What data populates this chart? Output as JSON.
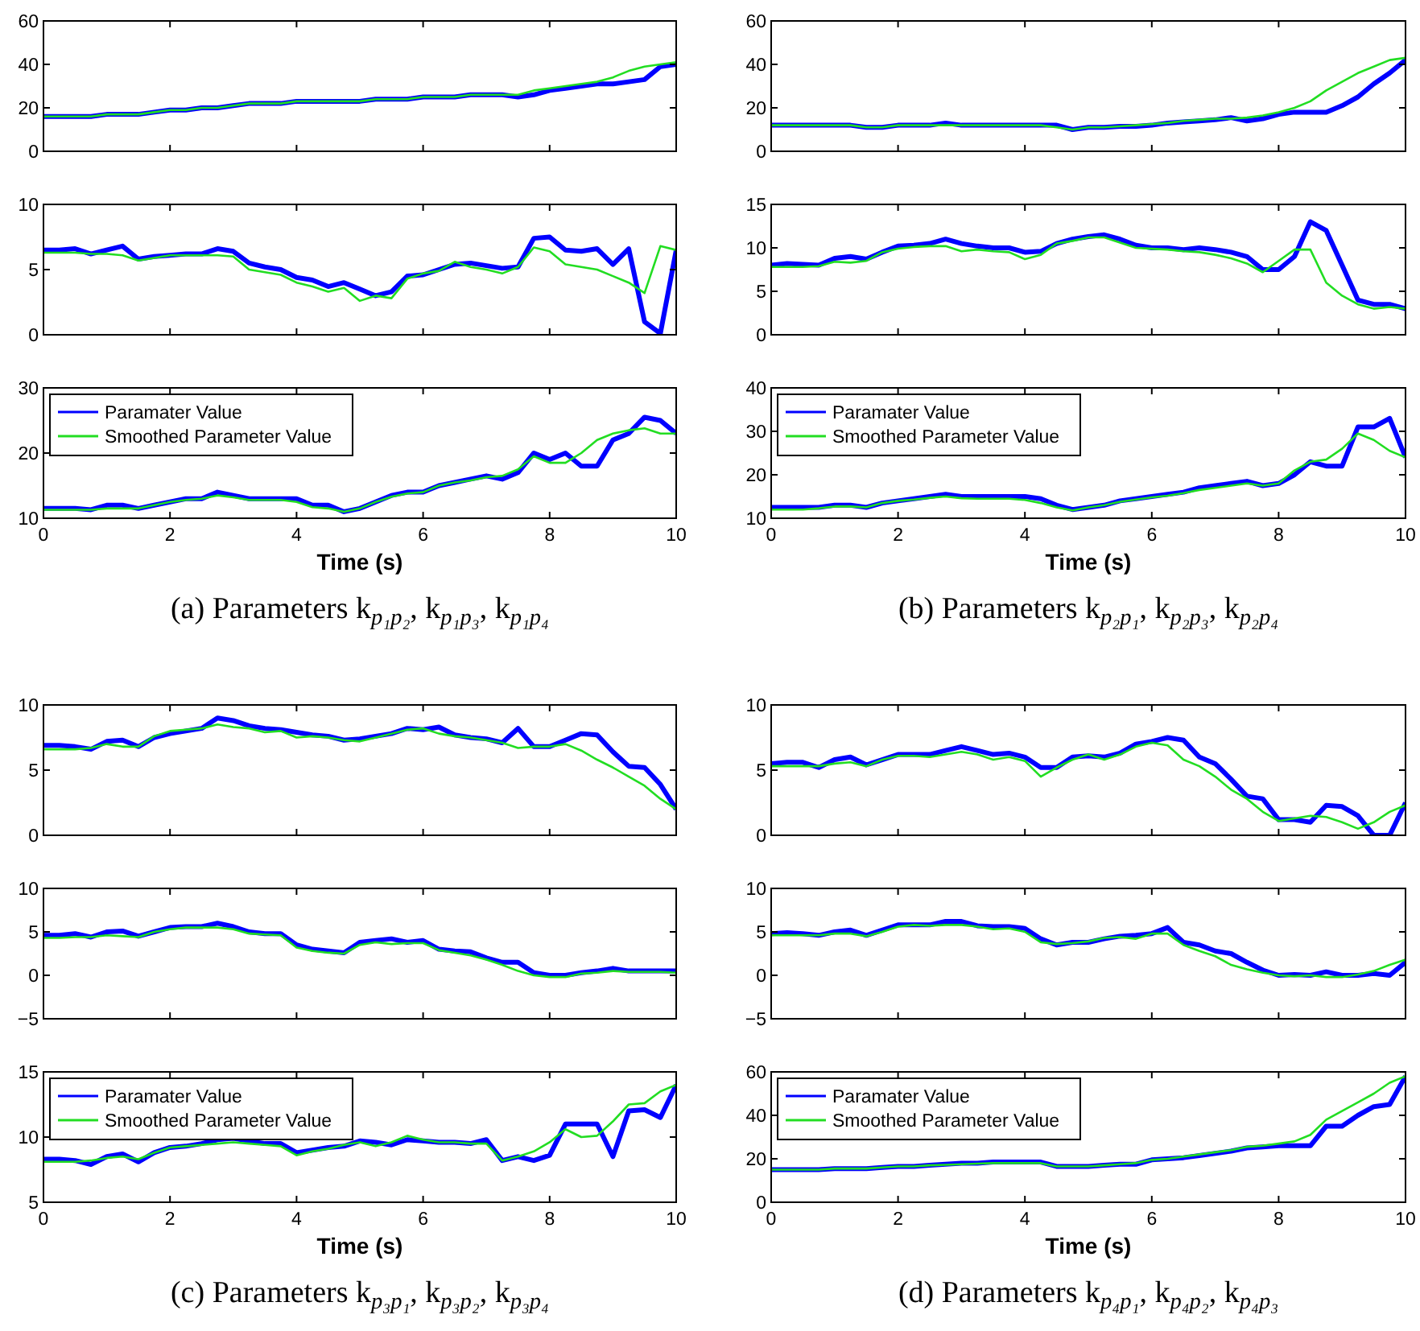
{
  "chart_data": [
    {
      "type": "line",
      "x": [
        0,
        0.25,
        0.5,
        0.75,
        1,
        1.25,
        1.5,
        1.75,
        2,
        2.25,
        2.5,
        2.75,
        3,
        3.25,
        3.5,
        3.75,
        4,
        4.25,
        4.5,
        4.75,
        5,
        5.25,
        5.5,
        5.75,
        6,
        6.25,
        6.5,
        6.75,
        7,
        7.25,
        7.5,
        7.75,
        8,
        8.25,
        8.5,
        8.75,
        9,
        9.25,
        9.5,
        9.75,
        10
      ],
      "xlim": [
        0,
        10
      ],
      "xticks": [
        0,
        2,
        4,
        6,
        8,
        10
      ],
      "ylim": [
        0,
        60
      ],
      "yticks": [
        0,
        20,
        40,
        60
      ],
      "tick_labels": "y",
      "series": [
        {
          "color": "#0000ff",
          "values": [
            16,
            16,
            16,
            16,
            17,
            17,
            17,
            18,
            19,
            19,
            20,
            20,
            21,
            22,
            22,
            22,
            23,
            23,
            23,
            23,
            23,
            24,
            24,
            24,
            25,
            25,
            25,
            26,
            26,
            26,
            25,
            26,
            28,
            29,
            30,
            31,
            31,
            32,
            33,
            39,
            40
          ]
        },
        {
          "color": "#22dd22",
          "values": [
            16,
            16,
            16,
            16,
            17,
            17,
            17,
            18,
            19,
            19,
            20,
            20,
            21,
            22,
            22,
            22,
            23,
            23,
            23,
            23,
            23,
            24,
            24,
            24,
            25,
            25,
            25,
            26,
            26,
            26,
            26,
            28,
            29,
            30,
            31,
            32,
            34,
            37,
            39,
            40,
            41
          ]
        }
      ]
    },
    {
      "type": "line",
      "x": [
        0,
        0.25,
        0.5,
        0.75,
        1,
        1.25,
        1.5,
        1.75,
        2,
        2.25,
        2.5,
        2.75,
        3,
        3.25,
        3.5,
        3.75,
        4,
        4.25,
        4.5,
        4.75,
        5,
        5.25,
        5.5,
        5.75,
        6,
        6.25,
        6.5,
        6.75,
        7,
        7.25,
        7.5,
        7.75,
        8,
        8.25,
        8.5,
        8.75,
        9,
        9.25,
        9.5,
        9.75,
        10
      ],
      "xlim": [
        0,
        10
      ],
      "xticks": [
        0,
        2,
        4,
        6,
        8,
        10
      ],
      "ylim": [
        0,
        10
      ],
      "yticks": [
        0,
        5,
        10
      ],
      "tick_labels": "y",
      "series": [
        {
          "color": "#0000ff",
          "values": [
            6.5,
            6.5,
            6.6,
            6.2,
            6.5,
            6.8,
            5.8,
            6.0,
            6.1,
            6.2,
            6.2,
            6.6,
            6.4,
            5.5,
            5.2,
            5.0,
            4.4,
            4.2,
            3.7,
            4.0,
            3.5,
            3.0,
            3.3,
            4.5,
            4.6,
            5.0,
            5.4,
            5.5,
            5.3,
            5.1,
            5.2,
            7.4,
            7.5,
            6.5,
            6.4,
            6.6,
            5.4,
            6.6,
            1.0,
            0.1,
            6.5
          ]
        },
        {
          "color": "#22dd22",
          "values": [
            6.3,
            6.3,
            6.3,
            6.2,
            6.2,
            6.1,
            5.7,
            5.9,
            6.1,
            6.1,
            6.1,
            6.1,
            6.0,
            5.0,
            4.8,
            4.6,
            4.0,
            3.7,
            3.3,
            3.6,
            2.6,
            3.0,
            2.8,
            4.3,
            4.7,
            4.9,
            5.6,
            5.2,
            5.0,
            4.7,
            5.2,
            6.7,
            6.4,
            5.4,
            5.2,
            5.0,
            4.5,
            4.0,
            3.2,
            6.8,
            6.5
          ]
        }
      ]
    },
    {
      "type": "line",
      "x": [
        0,
        0.25,
        0.5,
        0.75,
        1,
        1.25,
        1.5,
        1.75,
        2,
        2.25,
        2.5,
        2.75,
        3,
        3.25,
        3.5,
        3.75,
        4,
        4.25,
        4.5,
        4.75,
        5,
        5.25,
        5.5,
        5.75,
        6,
        6.25,
        6.5,
        6.75,
        7,
        7.25,
        7.5,
        7.75,
        8,
        8.25,
        8.5,
        8.75,
        9,
        9.25,
        9.5,
        9.75,
        10
      ],
      "xlim": [
        0,
        10
      ],
      "xticks": [
        0,
        2,
        4,
        6,
        8,
        10
      ],
      "ylim": [
        10,
        30
      ],
      "yticks": [
        10,
        20,
        30
      ],
      "xlabel": "Time (s)",
      "legend": "top left",
      "annotations": [
        "(a) Parameters k$_{p₁p₂}$, k$_{p₁p₃}$, k$_{p₁p₄}$"
      ],
      "series": [
        {
          "name": "Paramater Value",
          "color": "#0000ff",
          "values": [
            11.5,
            11.5,
            11.5,
            11.3,
            12,
            12,
            11.5,
            12,
            12.5,
            13,
            13,
            14,
            13.5,
            13,
            13,
            13,
            13,
            12,
            12,
            11,
            11.5,
            12.5,
            13.5,
            14,
            14,
            15,
            15.5,
            16,
            16.5,
            16,
            17,
            20,
            19,
            20,
            18,
            18,
            22,
            23,
            25.5,
            25,
            23
          ]
        },
        {
          "name": "Smoothed Parameter Value",
          "color": "#22dd22",
          "values": [
            11.3,
            11.3,
            11.3,
            11.3,
            11.5,
            11.5,
            11.5,
            12,
            12.5,
            12.8,
            13,
            13.5,
            13.2,
            12.8,
            12.8,
            12.8,
            12.5,
            11.7,
            11.5,
            11,
            11.5,
            12.5,
            13.3,
            13.8,
            14,
            15,
            15.5,
            15.8,
            16.3,
            16.5,
            17.5,
            19.5,
            18.5,
            18.5,
            20,
            22,
            23,
            23.5,
            23.8,
            23,
            23
          ]
        }
      ]
    },
    {
      "type": "line",
      "x": [
        0,
        0.25,
        0.5,
        0.75,
        1,
        1.25,
        1.5,
        1.75,
        2,
        2.25,
        2.5,
        2.75,
        3,
        3.25,
        3.5,
        3.75,
        4,
        4.25,
        4.5,
        4.75,
        5,
        5.25,
        5.5,
        5.75,
        6,
        6.25,
        6.5,
        6.75,
        7,
        7.25,
        7.5,
        7.75,
        8,
        8.25,
        8.5,
        8.75,
        9,
        9.25,
        9.5,
        9.75,
        10
      ],
      "xlim": [
        0,
        10
      ],
      "xticks": [
        0,
        2,
        4,
        6,
        8,
        10
      ],
      "ylim": [
        0,
        60
      ],
      "yticks": [
        0,
        20,
        40,
        60
      ],
      "tick_labels": "y",
      "series": [
        {
          "color": "#0000ff",
          "values": [
            12,
            12,
            12,
            12,
            12,
            12,
            11,
            11,
            12,
            12,
            12,
            13,
            12,
            12,
            12,
            12,
            12,
            12,
            12,
            10,
            11,
            11,
            11.5,
            11.5,
            12,
            13,
            13.5,
            14,
            14.5,
            15.5,
            14,
            15,
            17,
            18,
            18,
            18,
            21,
            25,
            31,
            36,
            42
          ]
        },
        {
          "color": "#22dd22",
          "values": [
            12,
            12,
            12,
            12,
            12,
            12,
            11,
            11,
            12,
            12,
            12,
            12,
            12,
            12,
            12,
            12,
            12,
            12,
            11,
            10,
            11,
            11,
            11.5,
            12,
            12.5,
            13,
            14,
            14.5,
            15,
            15,
            15.5,
            16.5,
            18,
            20,
            23,
            28,
            32,
            36,
            39,
            42,
            43
          ]
        }
      ]
    },
    {
      "type": "line",
      "x": [
        0,
        0.25,
        0.5,
        0.75,
        1,
        1.25,
        1.5,
        1.75,
        2,
        2.25,
        2.5,
        2.75,
        3,
        3.25,
        3.5,
        3.75,
        4,
        4.25,
        4.5,
        4.75,
        5,
        5.25,
        5.5,
        5.75,
        6,
        6.25,
        6.5,
        6.75,
        7,
        7.25,
        7.5,
        7.75,
        8,
        8.25,
        8.5,
        8.75,
        9,
        9.25,
        9.5,
        9.75,
        10
      ],
      "xlim": [
        0,
        10
      ],
      "xticks": [
        0,
        2,
        4,
        6,
        8,
        10
      ],
      "ylim": [
        0,
        15
      ],
      "yticks": [
        0,
        5,
        10,
        15
      ],
      "tick_labels": "y",
      "series": [
        {
          "color": "#0000ff",
          "values": [
            8,
            8.2,
            8.1,
            8,
            8.8,
            9,
            8.7,
            9.5,
            10.2,
            10.3,
            10.5,
            11,
            10.5,
            10.2,
            10,
            10,
            9.5,
            9.6,
            10.5,
            11,
            11.3,
            11.5,
            11,
            10.3,
            10,
            10,
            9.8,
            10,
            9.8,
            9.5,
            9,
            7.5,
            7.5,
            9,
            13,
            12,
            8,
            4,
            3.5,
            3.5,
            3
          ]
        },
        {
          "color": "#22dd22",
          "values": [
            7.8,
            7.8,
            7.8,
            7.9,
            8.4,
            8.3,
            8.5,
            9.5,
            9.9,
            10.1,
            10.2,
            10.2,
            9.6,
            9.8,
            9.6,
            9.5,
            8.7,
            9.2,
            10.5,
            10.8,
            11.2,
            11.2,
            10.6,
            10,
            9.9,
            9.8,
            9.6,
            9.5,
            9.2,
            8.8,
            8.2,
            7.2,
            8.5,
            9.8,
            9.8,
            6,
            4.5,
            3.5,
            3,
            3.2,
            3
          ]
        }
      ]
    },
    {
      "type": "line",
      "x": [
        0,
        0.25,
        0.5,
        0.75,
        1,
        1.25,
        1.5,
        1.75,
        2,
        2.25,
        2.5,
        2.75,
        3,
        3.25,
        3.5,
        3.75,
        4,
        4.25,
        4.5,
        4.75,
        5,
        5.25,
        5.5,
        5.75,
        6,
        6.25,
        6.5,
        6.75,
        7,
        7.25,
        7.5,
        7.75,
        8,
        8.25,
        8.5,
        8.75,
        9,
        9.25,
        9.5,
        9.75,
        10
      ],
      "xlim": [
        0,
        10
      ],
      "xticks": [
        0,
        2,
        4,
        6,
        8,
        10
      ],
      "ylim": [
        10,
        40
      ],
      "yticks": [
        10,
        20,
        30,
        40
      ],
      "xlabel": "Time (s)",
      "legend": "top left",
      "annotations": [
        "(b) Parameters k$_{p₂p₁}$, k$_{p₂p₃}$, k$_{p₂p₄}$"
      ],
      "series": [
        {
          "name": "Paramater Value",
          "color": "#0000ff",
          "values": [
            12.5,
            12.5,
            12.5,
            12.5,
            13,
            13,
            12.5,
            13.5,
            14,
            14.5,
            15,
            15.5,
            15,
            15,
            15,
            15,
            15,
            14.5,
            13,
            12,
            12.5,
            13,
            14,
            14.5,
            15,
            15.5,
            16,
            17,
            17.5,
            18,
            18.5,
            17.5,
            18,
            20,
            23,
            22,
            22,
            31,
            31,
            33,
            24
          ]
        },
        {
          "name": "Smoothed Parameter Value",
          "color": "#22dd22",
          "values": [
            12,
            12,
            12,
            12.3,
            12.7,
            12.7,
            12.5,
            13.5,
            14,
            14.3,
            14.7,
            15,
            14.6,
            14.5,
            14.5,
            14.5,
            14.2,
            13.5,
            12.5,
            11.8,
            12.5,
            13,
            13.8,
            14.3,
            14.8,
            15.2,
            15.8,
            16.5,
            17,
            17.5,
            18,
            17.5,
            18,
            21,
            23,
            23.5,
            26,
            29.5,
            28,
            25.5,
            24
          ]
        }
      ]
    },
    {
      "type": "line",
      "x": [
        0,
        0.25,
        0.5,
        0.75,
        1,
        1.25,
        1.5,
        1.75,
        2,
        2.25,
        2.5,
        2.75,
        3,
        3.25,
        3.5,
        3.75,
        4,
        4.25,
        4.5,
        4.75,
        5,
        5.25,
        5.5,
        5.75,
        6,
        6.25,
        6.5,
        6.75,
        7,
        7.25,
        7.5,
        7.75,
        8,
        8.25,
        8.5,
        8.75,
        9,
        9.25,
        9.5,
        9.75,
        10
      ],
      "xlim": [
        0,
        10
      ],
      "xticks": [
        0,
        2,
        4,
        6,
        8,
        10
      ],
      "ylim": [
        0,
        10
      ],
      "yticks": [
        0,
        5,
        10
      ],
      "tick_labels": "y",
      "series": [
        {
          "color": "#0000ff",
          "values": [
            6.9,
            6.9,
            6.8,
            6.6,
            7.2,
            7.3,
            6.8,
            7.5,
            7.8,
            8,
            8.2,
            9,
            8.8,
            8.4,
            8.2,
            8.1,
            7.9,
            7.7,
            7.6,
            7.3,
            7.4,
            7.6,
            7.8,
            8.2,
            8.1,
            8.3,
            7.7,
            7.5,
            7.4,
            7.1,
            8.2,
            6.8,
            6.8,
            7.3,
            7.8,
            7.7,
            6.4,
            5.3,
            5.2,
            3.9,
            2
          ]
        },
        {
          "color": "#22dd22",
          "values": [
            6.6,
            6.6,
            6.6,
            6.7,
            7,
            6.8,
            6.8,
            7.6,
            8,
            8.1,
            8.2,
            8.5,
            8.3,
            8.2,
            7.9,
            8,
            7.5,
            7.6,
            7.5,
            7.3,
            7.2,
            7.5,
            7.8,
            8.1,
            8.2,
            7.8,
            7.6,
            7.5,
            7.3,
            7.1,
            6.7,
            6.8,
            6.8,
            7,
            6.5,
            5.8,
            5.2,
            4.5,
            3.8,
            2.8,
            2
          ]
        }
      ]
    },
    {
      "type": "line",
      "x": [
        0,
        0.25,
        0.5,
        0.75,
        1,
        1.25,
        1.5,
        1.75,
        2,
        2.25,
        2.5,
        2.75,
        3,
        3.25,
        3.5,
        3.75,
        4,
        4.25,
        4.5,
        4.75,
        5,
        5.25,
        5.5,
        5.75,
        6,
        6.25,
        6.5,
        6.75,
        7,
        7.25,
        7.5,
        7.75,
        8,
        8.25,
        8.5,
        8.75,
        9,
        9.25,
        9.5,
        9.75,
        10
      ],
      "xlim": [
        0,
        10
      ],
      "xticks": [
        0,
        2,
        4,
        6,
        8,
        10
      ],
      "ylim": [
        -5,
        10
      ],
      "yticks": [
        {
          "value": -5,
          "label": "−5"
        },
        0,
        5,
        10
      ],
      "tick_labels": "y",
      "series": [
        {
          "color": "#0000ff",
          "values": [
            4.6,
            4.6,
            4.8,
            4.4,
            5,
            5.1,
            4.5,
            5,
            5.5,
            5.6,
            5.6,
            6,
            5.6,
            5,
            4.8,
            4.8,
            3.5,
            3,
            2.8,
            2.6,
            3.8,
            4,
            4.2,
            3.8,
            4,
            3,
            2.8,
            2.7,
            2,
            1.5,
            1.5,
            0.3,
            0,
            0,
            0.3,
            0.5,
            0.8,
            0.5,
            0.5,
            0.5,
            0.5
          ]
        },
        {
          "color": "#22dd22",
          "values": [
            4.3,
            4.3,
            4.4,
            4.4,
            4.6,
            4.5,
            4.4,
            5,
            5.3,
            5.5,
            5.5,
            5.5,
            5.3,
            4.8,
            4.7,
            4.6,
            3.2,
            2.8,
            2.6,
            2.5,
            3.5,
            3.8,
            3.6,
            3.7,
            3.7,
            2.9,
            2.6,
            2.3,
            1.8,
            1.2,
            0.5,
            0,
            -0.2,
            -0.2,
            0.2,
            0.3,
            0.5,
            0.4,
            0.4,
            0.4,
            0.3
          ]
        }
      ]
    },
    {
      "type": "line",
      "x": [
        0,
        0.25,
        0.5,
        0.75,
        1,
        1.25,
        1.5,
        1.75,
        2,
        2.25,
        2.5,
        2.75,
        3,
        3.25,
        3.5,
        3.75,
        4,
        4.25,
        4.5,
        4.75,
        5,
        5.25,
        5.5,
        5.75,
        6,
        6.25,
        6.5,
        6.75,
        7,
        7.25,
        7.5,
        7.75,
        8,
        8.25,
        8.5,
        8.75,
        9,
        9.25,
        9.5,
        9.75,
        10
      ],
      "xlim": [
        0,
        10
      ],
      "xticks": [
        0,
        2,
        4,
        6,
        8,
        10
      ],
      "ylim": [
        5,
        15
      ],
      "yticks": [
        5,
        10,
        15
      ],
      "xlabel": "Time (s)",
      "legend": "top left",
      "annotations": [
        "(c) Parameters k$_{p₃p₁}$, k$_{p₃p₂}$, k$_{p₃p₄}$"
      ],
      "series": [
        {
          "name": "Paramater Value",
          "color": "#0000ff",
          "values": [
            8.3,
            8.3,
            8.2,
            7.9,
            8.5,
            8.7,
            8.1,
            8.8,
            9.2,
            9.3,
            9.5,
            9.8,
            9.9,
            9.7,
            9.5,
            9.5,
            8.8,
            9,
            9.2,
            9.3,
            9.7,
            9.6,
            9.4,
            9.8,
            9.7,
            9.6,
            9.6,
            9.5,
            9.8,
            8.2,
            8.5,
            8.2,
            8.6,
            11,
            11,
            11,
            8.5,
            12,
            12.1,
            11.5,
            14
          ]
        },
        {
          "name": "Smoothed Parameter Value",
          "color": "#22dd22",
          "values": [
            8.1,
            8.1,
            8.1,
            8.2,
            8.4,
            8.5,
            8.3,
            8.8,
            9.2,
            9.3,
            9.4,
            9.5,
            9.6,
            9.5,
            9.4,
            9.3,
            8.6,
            8.9,
            9.1,
            9.4,
            9.6,
            9.3,
            9.6,
            10.1,
            9.8,
            9.6,
            9.6,
            9.5,
            9.5,
            8.2,
            8.5,
            8.9,
            9.6,
            10.6,
            10,
            10.1,
            11.2,
            12.5,
            12.6,
            13.5,
            14
          ]
        }
      ]
    },
    {
      "type": "line",
      "x": [
        0,
        0.25,
        0.5,
        0.75,
        1,
        1.25,
        1.5,
        1.75,
        2,
        2.25,
        2.5,
        2.75,
        3,
        3.25,
        3.5,
        3.75,
        4,
        4.25,
        4.5,
        4.75,
        5,
        5.25,
        5.5,
        5.75,
        6,
        6.25,
        6.5,
        6.75,
        7,
        7.25,
        7.5,
        7.75,
        8,
        8.25,
        8.5,
        8.75,
        9,
        9.25,
        9.5,
        9.75,
        10
      ],
      "xlim": [
        0,
        10
      ],
      "xticks": [
        0,
        2,
        4,
        6,
        8,
        10
      ],
      "ylim": [
        0,
        10
      ],
      "yticks": [
        0,
        5,
        10
      ],
      "tick_labels": "y",
      "series": [
        {
          "color": "#0000ff",
          "values": [
            5.5,
            5.6,
            5.6,
            5.2,
            5.8,
            6,
            5.4,
            5.8,
            6.2,
            6.2,
            6.2,
            6.5,
            6.8,
            6.5,
            6.2,
            6.3,
            6,
            5.2,
            5.2,
            6,
            6.1,
            6,
            6.3,
            7,
            7.2,
            7.5,
            7.3,
            6,
            5.5,
            4.3,
            3,
            2.8,
            1.2,
            1.2,
            1,
            2.3,
            2.2,
            1.5,
            0,
            0,
            2.5
          ]
        },
        {
          "color": "#22dd22",
          "values": [
            5.3,
            5.3,
            5.3,
            5.3,
            5.5,
            5.6,
            5.3,
            5.8,
            6.1,
            6.1,
            6,
            6.2,
            6.4,
            6.2,
            5.8,
            6,
            5.7,
            4.5,
            5.2,
            5.8,
            6.2,
            5.8,
            6.2,
            6.8,
            7.1,
            6.9,
            5.8,
            5.3,
            4.5,
            3.5,
            2.8,
            1.8,
            1.1,
            1.3,
            1.5,
            1.4,
            1,
            0.5,
            1,
            1.8,
            2.3
          ]
        }
      ]
    },
    {
      "type": "line",
      "x": [
        0,
        0.25,
        0.5,
        0.75,
        1,
        1.25,
        1.5,
        1.75,
        2,
        2.25,
        2.5,
        2.75,
        3,
        3.25,
        3.5,
        3.75,
        4,
        4.25,
        4.5,
        4.75,
        5,
        5.25,
        5.5,
        5.75,
        6,
        6.25,
        6.5,
        6.75,
        7,
        7.25,
        7.5,
        7.75,
        8,
        8.25,
        8.5,
        8.75,
        9,
        9.25,
        9.5,
        9.75,
        10
      ],
      "xlim": [
        0,
        10
      ],
      "xticks": [
        0,
        2,
        4,
        6,
        8,
        10
      ],
      "ylim": [
        -5,
        10
      ],
      "yticks": [
        {
          "value": -5,
          "label": "−5"
        },
        0,
        5,
        10
      ],
      "tick_labels": "y",
      "series": [
        {
          "color": "#0000ff",
          "values": [
            4.8,
            4.9,
            4.8,
            4.6,
            5,
            5.2,
            4.6,
            5.2,
            5.8,
            5.8,
            5.8,
            6.2,
            6.2,
            5.7,
            5.6,
            5.6,
            5.4,
            4.2,
            3.5,
            3.8,
            3.8,
            4.2,
            4.5,
            4.6,
            4.8,
            5.5,
            3.8,
            3.5,
            2.8,
            2.5,
            1.5,
            0.6,
            0,
            0.1,
            0,
            0.4,
            0,
            0,
            0.2,
            0,
            1.5
          ]
        },
        {
          "color": "#22dd22",
          "values": [
            4.6,
            4.6,
            4.6,
            4.6,
            4.8,
            4.8,
            4.5,
            5,
            5.6,
            5.8,
            5.7,
            5.8,
            5.8,
            5.6,
            5.3,
            5.4,
            5,
            3.8,
            3.6,
            3.7,
            3.9,
            4.3,
            4.4,
            4.2,
            4.8,
            4.8,
            3.5,
            2.8,
            2.2,
            1.2,
            0.7,
            0.3,
            0,
            -0.1,
            0,
            -0.2,
            -0.2,
            0.1,
            0.5,
            1.2,
            1.8
          ]
        }
      ]
    },
    {
      "type": "line",
      "x": [
        0,
        0.25,
        0.5,
        0.75,
        1,
        1.25,
        1.5,
        1.75,
        2,
        2.25,
        2.5,
        2.75,
        3,
        3.25,
        3.5,
        3.75,
        4,
        4.25,
        4.5,
        4.75,
        5,
        5.25,
        5.5,
        5.75,
        6,
        6.25,
        6.5,
        6.75,
        7,
        7.25,
        7.5,
        7.75,
        8,
        8.25,
        8.5,
        8.75,
        9,
        9.25,
        9.5,
        9.75,
        10
      ],
      "xlim": [
        0,
        10
      ],
      "xticks": [
        0,
        2,
        4,
        6,
        8,
        10
      ],
      "ylim": [
        0,
        60
      ],
      "yticks": [
        0,
        20,
        40,
        60
      ],
      "xlabel": "Time (s)",
      "legend": "top left",
      "annotations": [
        "(d) Parameters k$_{p₄p₁}$, k$_{p₄p₂}$, k$_{p₄p₃}$"
      ],
      "series": [
        {
          "name": "Paramater Value",
          "color": "#0000ff",
          "values": [
            15,
            15,
            15,
            15,
            15.5,
            15.5,
            15.5,
            16,
            16.5,
            16.5,
            17,
            17.5,
            18,
            18,
            18.5,
            18.5,
            18.5,
            18.5,
            16.5,
            16.5,
            16.5,
            17,
            17.5,
            17.5,
            19.5,
            20,
            20.5,
            21.5,
            22.5,
            23.5,
            25,
            25.5,
            26,
            26,
            26,
            35,
            35,
            40,
            44,
            45,
            58
          ]
        },
        {
          "name": "Smoothed Parameter Value",
          "color": "#22dd22",
          "values": [
            15,
            15,
            15,
            15,
            15.5,
            15.5,
            15.5,
            16,
            16.5,
            16.5,
            17,
            17.2,
            17.5,
            17.8,
            18,
            18,
            18,
            18,
            16.5,
            16.5,
            16.5,
            17,
            17.5,
            18,
            19.5,
            20,
            21,
            22,
            23,
            24,
            25.5,
            26,
            27,
            28,
            31,
            38,
            42,
            46,
            50,
            55,
            58
          ]
        }
      ]
    }
  ]
}
